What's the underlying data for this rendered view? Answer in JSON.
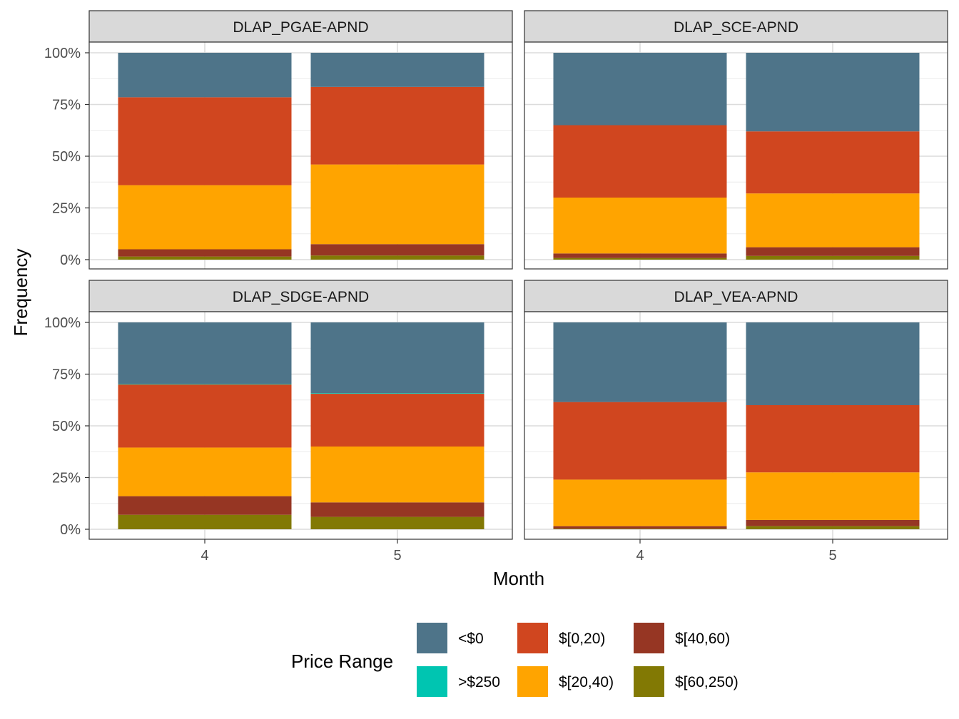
{
  "chart_data": {
    "type": "bar",
    "stacked": true,
    "faceted": true,
    "xlabel": "Month",
    "ylabel": "Frequency",
    "ylim": [
      0,
      1
    ],
    "y_ticks": [
      "0%",
      "25%",
      "50%",
      "75%",
      "100%"
    ],
    "categories": [
      "4",
      "5"
    ],
    "grid": true,
    "legend": {
      "title": "Price Range",
      "position": "bottom",
      "entries": [
        {
          "label": "<$0",
          "color": "#4E7489"
        },
        {
          "label": "$[0,20)",
          "color": "#D0461F"
        },
        {
          "label": "$[40,60)",
          "color": "#963623"
        },
        {
          "label": ">$250",
          "color": "#00C5B1"
        },
        {
          "label": "$[20,40)",
          "color": "#FFA400"
        },
        {
          "label": "$[60,250)",
          "color": "#827904"
        }
      ]
    },
    "stack_order": [
      "$[60,250)",
      "$[40,60)",
      "$[20,40)",
      "$[0,20)",
      ">$250",
      "<$0"
    ],
    "series_colors": {
      "<$0": "#4E7489",
      ">$250": "#00C5B1",
      "$[0,20)": "#D0461F",
      "$[20,40)": "#FFA400",
      "$[40,60)": "#963623",
      "$[60,250)": "#827904"
    },
    "panels": [
      {
        "title": "DLAP_PGAE-APND",
        "bars": [
          {
            "month": "4",
            "values": {
              "$[60,250)": 0.015,
              "$[40,60)": 0.035,
              "$[20,40)": 0.31,
              "$[0,20)": 0.425,
              ">$250": 0.0,
              "<$0": 0.215
            }
          },
          {
            "month": "5",
            "values": {
              "$[60,250)": 0.02,
              "$[40,60)": 0.055,
              "$[20,40)": 0.385,
              "$[0,20)": 0.375,
              ">$250": 0.0,
              "<$0": 0.165
            }
          }
        ]
      },
      {
        "title": "DLAP_SCE-APND",
        "bars": [
          {
            "month": "4",
            "values": {
              "$[60,250)": 0.008,
              "$[40,60)": 0.022,
              "$[20,40)": 0.27,
              "$[0,20)": 0.35,
              ">$250": 0.0,
              "<$0": 0.35
            }
          },
          {
            "month": "5",
            "values": {
              "$[60,250)": 0.018,
              "$[40,60)": 0.042,
              "$[20,40)": 0.26,
              "$[0,20)": 0.3,
              ">$250": 0.0,
              "<$0": 0.38
            }
          }
        ]
      },
      {
        "title": "DLAP_SDGE-APND",
        "bars": [
          {
            "month": "4",
            "values": {
              "$[60,250)": 0.07,
              "$[40,60)": 0.09,
              "$[20,40)": 0.235,
              "$[0,20)": 0.305,
              ">$250": 0.003,
              "<$0": 0.297
            }
          },
          {
            "month": "5",
            "values": {
              "$[60,250)": 0.06,
              "$[40,60)": 0.07,
              "$[20,40)": 0.27,
              "$[0,20)": 0.255,
              ">$250": 0.003,
              "<$0": 0.342
            }
          }
        ]
      },
      {
        "title": "DLAP_VEA-APND",
        "bars": [
          {
            "month": "4",
            "values": {
              "$[60,250)": 0.003,
              "$[40,60)": 0.012,
              "$[20,40)": 0.225,
              "$[0,20)": 0.375,
              ">$250": 0.0,
              "<$0": 0.385
            }
          },
          {
            "month": "5",
            "values": {
              "$[60,250)": 0.015,
              "$[40,60)": 0.03,
              "$[20,40)": 0.23,
              "$[0,20)": 0.325,
              ">$250": 0.0,
              "<$0": 0.4
            }
          }
        ]
      }
    ]
  }
}
